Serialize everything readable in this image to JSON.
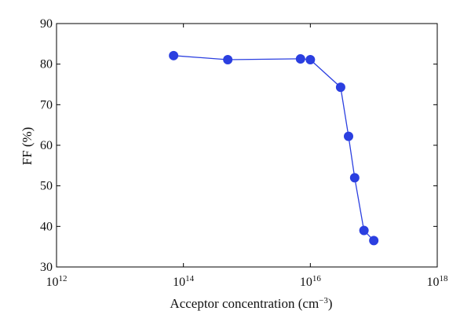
{
  "chart_data": {
    "type": "line",
    "title": "",
    "xlabel": "Acceptor concentration (cm",
    "xlabel_sup": "−3",
    "xlabel_close": ")",
    "ylabel": "FF (%)",
    "xscale": "log",
    "xlim": [
      1000000000000.0,
      1e+18
    ],
    "ylim": [
      30,
      90
    ],
    "x_ticks": [
      {
        "value": 1000000000000.0,
        "base": "10",
        "exp": "12"
      },
      {
        "value": 100000000000000.0,
        "base": "10",
        "exp": "14"
      },
      {
        "value": 1e+16,
        "base": "10",
        "exp": "16"
      },
      {
        "value": 1e+18,
        "base": "10",
        "exp": "18"
      }
    ],
    "y_ticks": [
      30,
      40,
      50,
      60,
      70,
      80,
      90
    ],
    "grid": false,
    "legend": "none",
    "series": [
      {
        "color": "#2b3fe0",
        "marker": "circle",
        "x": [
          70000000000000.0,
          500000000000000.0,
          7000000000000000.0,
          1e+16,
          3e+16,
          4e+16,
          5e+16,
          7e+16,
          1e+17
        ],
        "y": [
          82.1,
          81.1,
          81.3,
          81.1,
          74.3,
          62.2,
          52.0,
          39.0,
          36.5
        ]
      }
    ]
  }
}
